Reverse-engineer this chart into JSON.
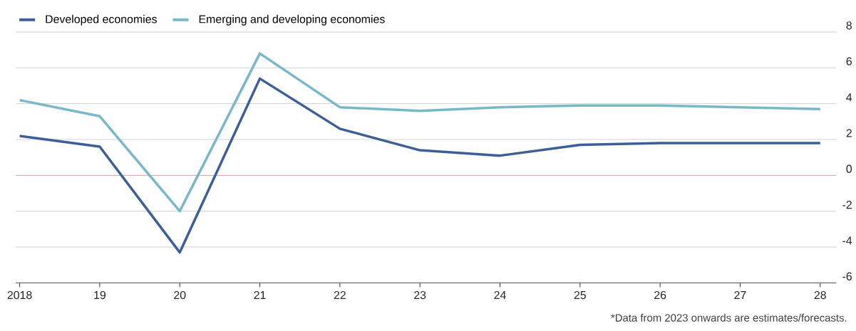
{
  "chart_data": {
    "type": "line",
    "categories": [
      "2018",
      "19",
      "20",
      "21",
      "22",
      "23",
      "24",
      "25",
      "26",
      "27",
      "28"
    ],
    "series": [
      {
        "name": "Developed economies",
        "color": "#3d5f99",
        "values": [
          2.2,
          1.6,
          -4.3,
          5.4,
          2.6,
          1.4,
          1.1,
          1.7,
          1.8,
          1.8,
          1.8
        ]
      },
      {
        "name": "Emerging and developing economies",
        "color": "#78b8c8",
        "values": [
          4.2,
          3.3,
          -2.0,
          6.8,
          3.8,
          3.6,
          3.8,
          3.9,
          3.9,
          3.8,
          3.7
        ]
      }
    ],
    "ylim": [
      -6,
      8
    ],
    "yticks": [
      -6,
      -4,
      -2,
      0,
      2,
      4,
      6,
      8
    ],
    "grid": "y",
    "legend": "top left",
    "ref_lines": [
      {
        "axis": "y",
        "value": 0,
        "color": "#d99a9a"
      }
    ],
    "annotations": [
      "*Data from 2023 onwards are estimates/forecasts."
    ]
  }
}
